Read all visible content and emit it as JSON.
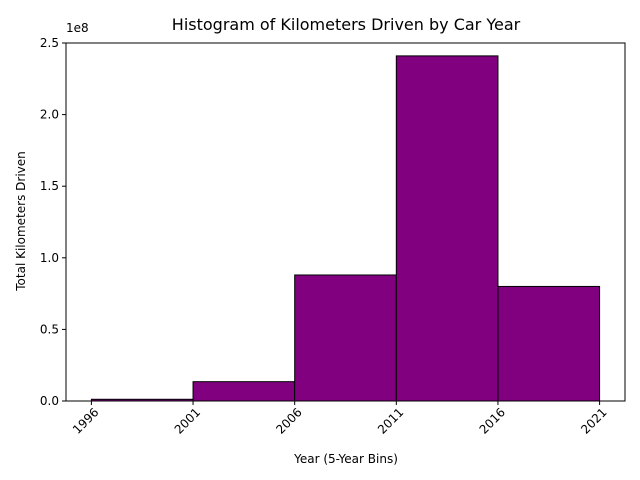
{
  "chart_data": {
    "type": "bar",
    "title": "Histogram of Kilometers Driven by Car Year",
    "xlabel": "Year (5-Year Bins)",
    "ylabel": "Total Kilometers Driven",
    "bin_edges": [
      1996,
      2001,
      2006,
      2011,
      2016,
      2021
    ],
    "values": [
      1200000,
      13500000,
      88000000,
      241000000,
      80000000
    ],
    "x_ticks": [
      "1996",
      "2001",
      "2006",
      "2011",
      "2016",
      "2021"
    ],
    "y_ticks": [
      "0.0",
      "0.5",
      "1.0",
      "1.5",
      "2.0",
      "2.5"
    ],
    "y_offset_label": "1e8",
    "xlim": [
      1994.75,
      2022.25
    ],
    "ylim": [
      0,
      250000000
    ],
    "bar_color": "#800080",
    "edge_color": "#000000",
    "grid": false,
    "x_tick_rotation": 45
  }
}
